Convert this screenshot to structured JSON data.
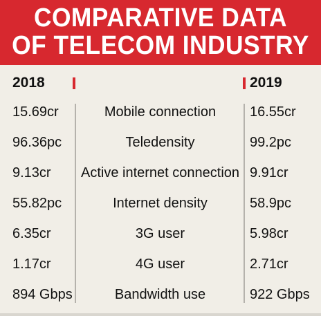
{
  "title": {
    "line1": "COMPARATIVE DATA",
    "line2": "OF TELECOM INDUSTRY"
  },
  "headers": {
    "left_year": "2018",
    "right_year": "2019"
  },
  "colors": {
    "accent": "#d7282f",
    "background": "#f1eee7"
  },
  "rows": [
    {
      "left": "15.69cr",
      "metric": "Mobile connection",
      "right": "16.55cr"
    },
    {
      "left": "96.36pc",
      "metric": "Teledensity",
      "right": "99.2pc"
    },
    {
      "left": "9.13cr",
      "metric": "Active internet connection",
      "right": "9.91cr"
    },
    {
      "left": "55.82pc",
      "metric": "Internet density",
      "right": "58.9pc"
    },
    {
      "left": "6.35cr",
      "metric": "3G user",
      "right": "5.98cr"
    },
    {
      "left": "1.17cr",
      "metric": "4G user",
      "right": "2.71cr"
    },
    {
      "left": "894 Gbps",
      "metric": "Bandwidth use",
      "right": "922 Gbps"
    }
  ]
}
